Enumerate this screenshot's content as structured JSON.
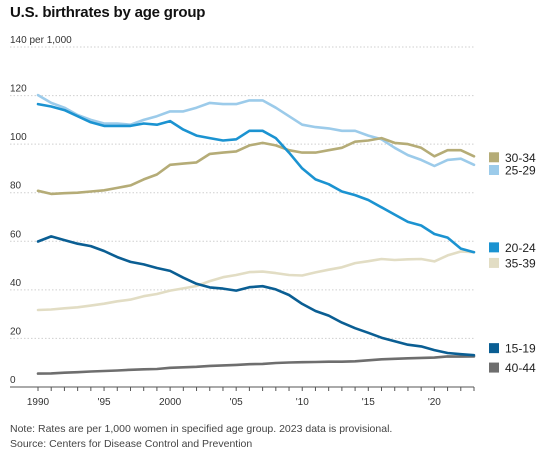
{
  "chart_data": {
    "type": "line",
    "title": "U.S. birthrates by age group",
    "ylabel": "per 1,000",
    "ylim": [
      0,
      140
    ],
    "yticks": [
      0,
      20,
      40,
      60,
      80,
      100,
      120,
      140
    ],
    "ytick_labels": [
      "0",
      "20",
      "40",
      "60",
      "80",
      "100",
      "120",
      "140 per 1,000"
    ],
    "xlim": [
      1990,
      2023
    ],
    "xticks": [
      1990,
      1995,
      2000,
      2005,
      2010,
      2015,
      2020
    ],
    "xtick_labels": [
      "1990",
      "'95",
      "2000",
      "'05",
      "'10",
      "'15",
      "'20"
    ],
    "grid": true,
    "legend": "right",
    "years": [
      1990,
      1991,
      1992,
      1993,
      1994,
      1995,
      1996,
      1997,
      1998,
      1999,
      2000,
      2001,
      2002,
      2003,
      2004,
      2005,
      2006,
      2007,
      2008,
      2009,
      2010,
      2011,
      2012,
      2013,
      2014,
      2015,
      2016,
      2017,
      2018,
      2019,
      2020,
      2021,
      2022,
      2023
    ],
    "series": [
      {
        "name": "30-34",
        "color": "#b5ac77",
        "values": [
          80.8,
          79.5,
          79.8,
          80.0,
          80.5,
          81.0,
          82.0,
          83.0,
          85.5,
          87.5,
          91.5,
          92.0,
          92.5,
          96.0,
          96.5,
          97.0,
          99.5,
          100.5,
          99.5,
          97.5,
          96.5,
          96.5,
          97.5,
          98.5,
          101.0,
          101.5,
          102.5,
          100.5,
          100.0,
          98.5,
          95.0,
          97.5,
          97.5,
          95.0
        ]
      },
      {
        "name": "25-29",
        "color": "#9ccbea",
        "values": [
          120.2,
          117.0,
          115.0,
          112.0,
          110.0,
          108.5,
          108.5,
          108.0,
          110.0,
          111.5,
          113.5,
          113.5,
          115.0,
          117.0,
          116.5,
          116.5,
          118.0,
          118.0,
          115.0,
          111.5,
          108.0,
          107.0,
          106.5,
          105.5,
          105.5,
          103.5,
          102.0,
          98.5,
          95.5,
          93.5,
          91.0,
          93.5,
          94.0,
          91.5
        ]
      },
      {
        "name": "20-24",
        "color": "#1b93d1",
        "values": [
          116.5,
          115.5,
          114.0,
          111.5,
          109.0,
          107.5,
          107.5,
          107.5,
          108.5,
          108.0,
          109.5,
          106.0,
          103.5,
          102.5,
          101.5,
          102.0,
          105.5,
          105.5,
          102.5,
          96.5,
          90.0,
          85.5,
          83.5,
          80.5,
          79.0,
          77.0,
          74.0,
          71.0,
          68.0,
          66.5,
          63.0,
          61.5,
          57.0,
          55.5
        ]
      },
      {
        "name": "35-39",
        "color": "#e2ddc4",
        "values": [
          31.7,
          31.9,
          32.4,
          32.8,
          33.5,
          34.3,
          35.3,
          36.0,
          37.4,
          38.3,
          39.7,
          40.6,
          41.6,
          43.6,
          45.2,
          46.1,
          47.3,
          47.5,
          46.9,
          46.1,
          45.9,
          47.2,
          48.3,
          49.3,
          51.0,
          51.8,
          52.7,
          52.3,
          52.6,
          52.7,
          51.7,
          54.2,
          55.8,
          55.5
        ]
      },
      {
        "name": "15-19",
        "color": "#0a5e93",
        "values": [
          59.9,
          62.0,
          60.5,
          59.0,
          58.0,
          56.0,
          53.5,
          51.5,
          50.5,
          49.0,
          47.8,
          45.0,
          42.5,
          41.0,
          40.5,
          39.7,
          41.1,
          41.5,
          40.2,
          37.9,
          34.2,
          31.3,
          29.4,
          26.5,
          24.2,
          22.3,
          20.3,
          18.8,
          17.4,
          16.7,
          15.2,
          14.0,
          13.5,
          13.1
        ]
      },
      {
        "name": "40-44",
        "color": "#6e6e6e",
        "values": [
          5.5,
          5.6,
          5.9,
          6.1,
          6.4,
          6.6,
          6.8,
          7.1,
          7.3,
          7.4,
          7.9,
          8.1,
          8.3,
          8.7,
          8.9,
          9.1,
          9.4,
          9.5,
          9.9,
          10.1,
          10.2,
          10.3,
          10.4,
          10.4,
          10.6,
          11.0,
          11.4,
          11.6,
          11.8,
          12.0,
          12.1,
          12.6,
          12.5,
          12.6
        ]
      }
    ],
    "legend_order": [
      "30-34",
      "25-29",
      "20-24",
      "35-39",
      "15-19",
      "40-44"
    ]
  },
  "notes": {
    "line1": "Note: Rates are per 1,000 women in specified age group. 2023 data is provisional.",
    "line2": "Source: Centers for Disease Control and Prevention"
  }
}
